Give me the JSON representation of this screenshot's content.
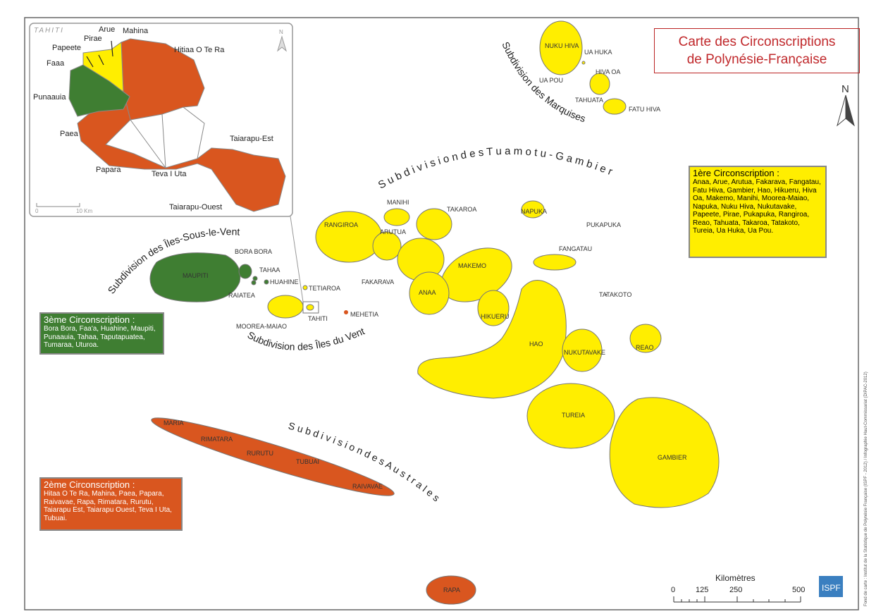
{
  "title": {
    "line1": "Carte des Circonscriptions",
    "line2": "de Polynésie-Française"
  },
  "colors": {
    "first": "#ffee00",
    "second": "#d9561f",
    "third": "#3f7e32",
    "title_red": "#c0282b"
  },
  "inset": {
    "title": "TAHITI",
    "labels": [
      "Arue",
      "Mahina",
      "Pirae",
      "Papeete",
      "Faaa",
      "Hitiaa O Te Ra",
      "Punaauia",
      "Paea",
      "Papara",
      "Teva I Uta",
      "Taiarapu-Est",
      "Taiarapu-Ouest"
    ],
    "scale": {
      "start": "0",
      "end": "10 Km"
    },
    "north": "N"
  },
  "subdivisions": {
    "marquises": "Subdivision des Marquises",
    "tuamotu": "S u b d i v i s i o n   d e s   T u a m o t u  -  G a m b i e r",
    "sous_le_vent": "Subdivision des Îles-Sous-le-Vent",
    "du_vent": "Subdivision des Îles du Vent",
    "australes": "S u b d i v i s i o n   d e s   A u s t r a l e s"
  },
  "islands": {
    "nuku_hiva": "NUKU HIVA",
    "ua_huka": "UA HUKA",
    "ua_pou": "UA POU",
    "hiva_oa": "HIVA OA",
    "tahuata": "TAHUATA",
    "fatu_hiva": "FATU HIVA",
    "rangiroa": "RANGIROA",
    "manihi": "MANIHI",
    "takaroa": "TAKAROA",
    "arutua": "ARUTUA",
    "napuka": "NAPUKA",
    "pukapuka": "PUKAPUKA",
    "fangatau": "FANGATAU",
    "makemo": "MAKEMO",
    "fakarava": "FAKARAVA",
    "anaa": "ANAA",
    "tatakoto": "TATAKOTO",
    "hikueru": "HIKUERU",
    "hao": "HAO",
    "nukutavake": "NUKUTAVAKE",
    "reao": "REAO",
    "tureia": "TUREIA",
    "gambier": "GAMBIER",
    "maupiti": "MAUPITI",
    "bora_bora": "BORA BORA",
    "tahaa": "TAHAA",
    "huahine": "HUAHINE",
    "raiatea": "RAIATEA",
    "tetiaroa": "TETIAROA",
    "moorea": "MOOREA-MAIAO",
    "tahiti": "TAHITI",
    "mehetia": "MEHETIA",
    "maria": "MARIA",
    "rimatara": "RIMATARA",
    "rurutu": "RURUTU",
    "tubuai": "TUBUAI",
    "raivavae": "RAIVAVAE",
    "rapa": "RAPA"
  },
  "legend": {
    "first": {
      "title": "1ère Circonscription :",
      "text": "Anaa, Arue, Arutua, Fakarava, Fangatau, Fatu Hiva, Gambier, Hao, Hikueru, Hiva Oa, Makemo, Manihi, Moorea-Maiao, Napuka, Nuku Hiva, Nukutavake, Papeete, Pirae, Pukapuka, Rangiroa, Reao, Tahuata, Takaroa, Tatakoto, Tureia, Ua Huka, Ua Pou."
    },
    "second": {
      "title": "2ème Circonscription :",
      "text": "Hitaa O Te Ra, Mahina, Paea, Papara, Raivavae, Rapa, Rimatara, Rurutu, Taiarapu Est, Taiarapu Ouest, Teva I Uta, Tubuai."
    },
    "third": {
      "title": "3ème Circonscription :",
      "text": "Bora Bora, Faa'a, Huahine, Maupiti, Punaauia, Tahaa, Taputapuatea, Tumaraa, Uturoa."
    }
  },
  "north": "N",
  "scale": {
    "title": "Kilomètres",
    "ticks": [
      "0",
      "125",
      "250",
      "500"
    ]
  },
  "logo": "ISPF",
  "credit": "Fond de carte : Institut de la Statistique de Polynésie Française (ISPF - 2012) / Infographie Haut-Commissariat (DIPAC-2012)"
}
